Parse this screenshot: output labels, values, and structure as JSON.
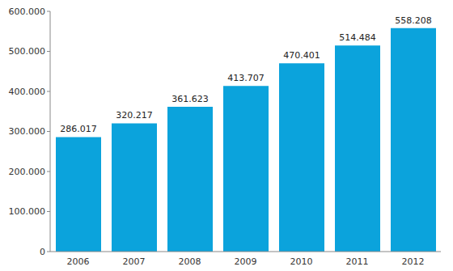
{
  "chart_data": {
    "type": "bar",
    "categories": [
      "2006",
      "2007",
      "2008",
      "2009",
      "2010",
      "2011",
      "2012"
    ],
    "values": [
      286017,
      320217,
      361623,
      413707,
      470401,
      514484,
      558208
    ],
    "value_labels": [
      "286.017",
      "320.217",
      "361.623",
      "413.707",
      "470.401",
      "514.484",
      "558.208"
    ],
    "data_labels": true,
    "color": "#0ba3dc",
    "ylim": [
      0,
      600000
    ],
    "yticks": [
      0,
      {
        "value": 100000,
        "label": "100.000"
      },
      {
        "value": 200000,
        "label": "200.000"
      },
      {
        "value": 300000,
        "label": "300.000"
      },
      {
        "value": 400000,
        "label": "400.000"
      },
      {
        "value": 500000,
        "label": "500.000"
      },
      {
        "value": 600000,
        "label": "600.000"
      }
    ],
    "grid": false
  }
}
